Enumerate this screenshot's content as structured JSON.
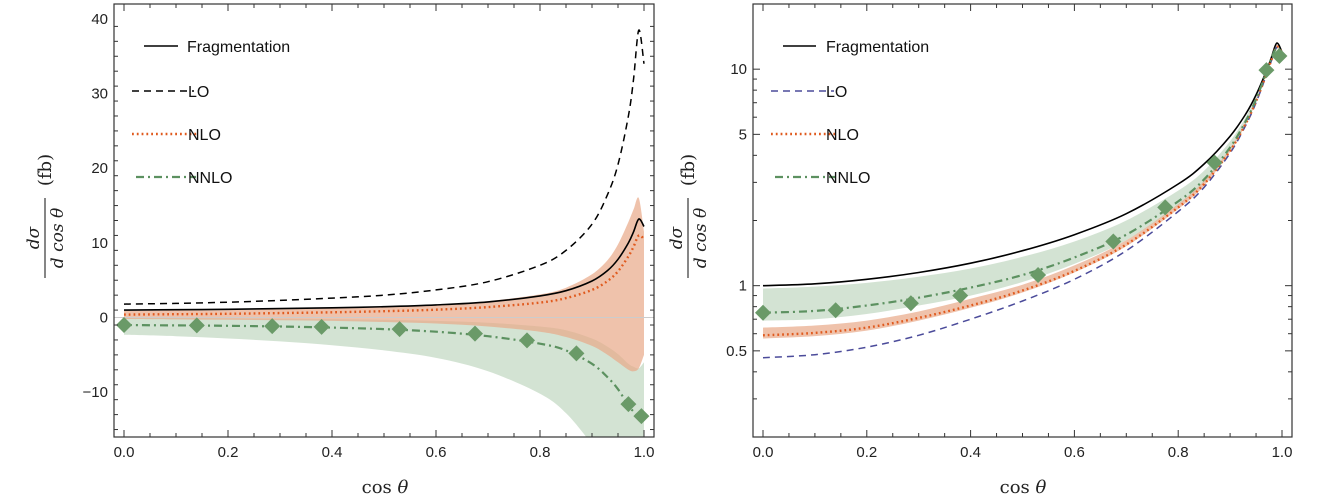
{
  "figure": {
    "colors": {
      "fragmentation": "#000000",
      "lo_left": "#000000",
      "lo_right": "#4b4b9a",
      "nlo": "#e05a1e",
      "nlo_band": "#e8a888",
      "nnlo": "#5c9160",
      "nnlo_band": "#b5d1b5",
      "marker": "#6a9a68"
    }
  },
  "chart_data": [
    {
      "type": "line",
      "panel": "left",
      "title": "",
      "xlabel": "cos θ",
      "ylabel": "dσ / d cos θ (fb)",
      "ylabel_parts": {
        "num": "dσ",
        "den": "d cos θ",
        "unit": "(fb)"
      },
      "xlim": [
        0,
        1
      ],
      "ylim": [
        -16,
        42
      ],
      "yscale": "linear",
      "grid": false,
      "legend_position": "top-left",
      "x_ticks": [
        "0.0",
        "0.2",
        "0.4",
        "0.6",
        "0.8",
        "1.0"
      ],
      "x_tick_values": [
        0,
        0.2,
        0.4,
        0.6,
        0.8,
        1.0
      ],
      "y_ticks": [
        "−10",
        "0",
        "10",
        "20",
        "30",
        "40"
      ],
      "y_tick_values": [
        -10,
        0,
        10,
        20,
        30,
        40
      ],
      "legend": [
        "Fragmentation",
        "LO",
        "NLO",
        "NNLO"
      ],
      "x": [
        0,
        0.1,
        0.2,
        0.3,
        0.4,
        0.5,
        0.6,
        0.7,
        0.8,
        0.85,
        0.9,
        0.93,
        0.95,
        0.97,
        0.98,
        0.99,
        1.0
      ],
      "series": [
        {
          "name": "Fragmentation",
          "style": "solid",
          "values": [
            1.0,
            1.05,
            1.1,
            1.2,
            1.3,
            1.45,
            1.7,
            2.1,
            2.9,
            3.6,
            4.9,
            6.3,
            7.8,
            10.0,
            11.5,
            13.2,
            12.2
          ]
        },
        {
          "name": "LO",
          "style": "dashed",
          "values": [
            1.8,
            1.9,
            2.05,
            2.3,
            2.6,
            3.0,
            3.7,
            4.8,
            7.0,
            9.0,
            12.5,
            16.5,
            20.5,
            27.0,
            32.0,
            38.5,
            34.0
          ]
        },
        {
          "name": "NLO",
          "style": "dotted",
          "values": [
            0.4,
            0.45,
            0.5,
            0.6,
            0.7,
            0.85,
            1.05,
            1.4,
            2.0,
            2.6,
            3.7,
            4.9,
            6.2,
            8.2,
            9.5,
            11.0,
            10.5
          ],
          "band_upper": [
            0.9,
            0.95,
            1.0,
            1.1,
            1.25,
            1.4,
            1.7,
            2.2,
            3.1,
            4.0,
            5.8,
            7.7,
            9.8,
            12.8,
            14.5,
            16.0,
            11.5
          ],
          "band_lower": [
            -0.2,
            -0.25,
            -0.3,
            -0.35,
            -0.45,
            -0.6,
            -0.8,
            -1.2,
            -1.9,
            -2.6,
            -3.8,
            -5.0,
            -6.0,
            -7.0,
            -7.2,
            -6.8,
            -5.0
          ]
        },
        {
          "name": "NNLO",
          "style": "dashdot",
          "values": [
            -1.0,
            -1.05,
            -1.1,
            -1.2,
            -1.35,
            -1.55,
            -1.9,
            -2.5,
            -3.5,
            -4.4,
            -6.2,
            -8.0,
            -9.6,
            -11.8,
            -12.6,
            -13.3,
            -13.5
          ],
          "band_upper": [
            0.0,
            -0.05,
            -0.1,
            -0.15,
            -0.2,
            -0.3,
            -0.45,
            -0.7,
            -1.2,
            -1.7,
            -2.8,
            -3.9,
            -4.9,
            -6.2,
            -6.6,
            -6.8,
            -6.0
          ],
          "band_lower": [
            -2.3,
            -2.5,
            -2.8,
            -3.2,
            -3.7,
            -4.4,
            -5.4,
            -7.2,
            -10.2,
            -12.8,
            -17,
            -20,
            -22,
            -24,
            -25,
            -26,
            -26
          ]
        }
      ],
      "markers": {
        "name": "NNLO markers",
        "x": [
          0.0,
          0.14,
          0.285,
          0.38,
          0.53,
          0.675,
          0.775,
          0.87,
          0.97,
          0.995
        ],
        "y": [
          -1.0,
          -1.05,
          -1.15,
          -1.25,
          -1.55,
          -2.15,
          -3.05,
          -4.8,
          -11.6,
          -13.2
        ]
      }
    },
    {
      "type": "line",
      "panel": "right",
      "title": "",
      "xlabel": "cos θ",
      "ylabel": "dσ / d cos θ (fb)",
      "ylabel_parts": {
        "num": "dσ",
        "den": "d cos θ",
        "unit": "(fb)"
      },
      "xlim": [
        0,
        1
      ],
      "ylim": [
        0.2,
        20
      ],
      "yscale": "log",
      "grid": false,
      "legend_position": "top-left",
      "x_ticks": [
        "0.0",
        "0.2",
        "0.4",
        "0.6",
        "0.8",
        "1.0"
      ],
      "x_tick_values": [
        0,
        0.2,
        0.4,
        0.6,
        0.8,
        1.0
      ],
      "y_ticks": [
        "0.5",
        "1",
        "5",
        "10"
      ],
      "y_tick_values": [
        0.5,
        1,
        5,
        10
      ],
      "legend": [
        "Fragmentation",
        "LO",
        "NLO",
        "NNLO"
      ],
      "x": [
        0,
        0.1,
        0.2,
        0.3,
        0.4,
        0.5,
        0.6,
        0.7,
        0.8,
        0.85,
        0.9,
        0.93,
        0.95,
        0.97,
        0.98,
        0.99,
        1.0
      ],
      "series": [
        {
          "name": "Fragmentation",
          "style": "solid",
          "values": [
            1.0,
            1.02,
            1.07,
            1.15,
            1.27,
            1.45,
            1.72,
            2.15,
            2.95,
            3.65,
            4.9,
            6.2,
            7.6,
            9.8,
            11.4,
            13.2,
            12.0
          ]
        },
        {
          "name": "LO",
          "style": "dashed",
          "values": [
            0.465,
            0.48,
            0.52,
            0.59,
            0.7,
            0.85,
            1.07,
            1.45,
            2.2,
            2.85,
            4.1,
            5.5,
            7.0,
            9.4,
            11.0,
            12.6,
            11.8
          ]
        },
        {
          "name": "NLO",
          "style": "dotted",
          "values": [
            0.59,
            0.605,
            0.64,
            0.71,
            0.81,
            0.95,
            1.17,
            1.55,
            2.3,
            2.95,
            4.2,
            5.6,
            7.1,
            9.5,
            11.1,
            12.7,
            11.9
          ],
          "band_upper": [
            0.64,
            0.655,
            0.69,
            0.76,
            0.87,
            1.01,
            1.24,
            1.62,
            2.38,
            3.05,
            4.3,
            5.7,
            7.2,
            9.6,
            11.2,
            12.8,
            12.0
          ],
          "band_lower": [
            0.57,
            0.585,
            0.62,
            0.69,
            0.79,
            0.93,
            1.15,
            1.52,
            2.26,
            2.9,
            4.15,
            5.55,
            7.05,
            9.45,
            11.05,
            12.6,
            11.8
          ]
        },
        {
          "name": "NNLO",
          "style": "dashdot",
          "values": [
            0.75,
            0.765,
            0.81,
            0.88,
            0.98,
            1.12,
            1.35,
            1.72,
            2.45,
            3.1,
            4.35,
            5.75,
            7.25,
            9.7,
            11.3,
            12.5,
            11.5
          ],
          "band_upper": [
            0.97,
            0.99,
            1.03,
            1.1,
            1.2,
            1.36,
            1.6,
            2.0,
            2.75,
            3.4,
            4.65,
            6.0,
            7.45,
            9.85,
            11.4,
            12.8,
            12.0
          ],
          "band_lower": [
            0.69,
            0.7,
            0.74,
            0.81,
            0.9,
            1.04,
            1.26,
            1.62,
            2.35,
            3.0,
            4.25,
            5.65,
            7.15,
            9.6,
            11.2,
            12.4,
            11.4
          ]
        }
      ],
      "markers": {
        "name": "NNLO markers",
        "x": [
          0.0,
          0.14,
          0.285,
          0.38,
          0.53,
          0.675,
          0.775,
          0.87,
          0.97,
          0.995
        ],
        "y": [
          0.75,
          0.77,
          0.83,
          0.9,
          1.12,
          1.6,
          2.3,
          3.7,
          9.9,
          11.5
        ]
      }
    }
  ]
}
